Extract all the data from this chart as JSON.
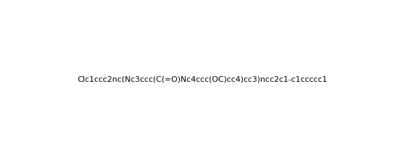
{
  "smiles": "Clc1ccc2nc(Nc3ccc(C(=O)Nc4ccc(OC)cc4)cc3)ncc2c1-c1ccccc1",
  "title": "",
  "bg_color": "#ffffff",
  "figsize": [
    5.72,
    2.24
  ],
  "dpi": 100
}
